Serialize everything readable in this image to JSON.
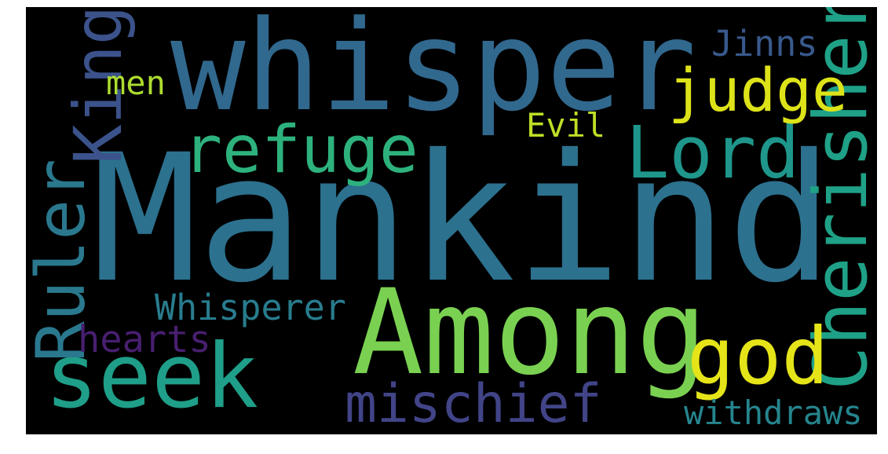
{
  "words": {
    "mankind": {
      "text": "Mankind",
      "color": "#2c718e"
    },
    "whisper": {
      "text": "whisper",
      "color": "#31688e"
    },
    "among": {
      "text": "Among",
      "color": "#7ad151"
    },
    "seek": {
      "text": "seek",
      "color": "#1f9e89"
    },
    "refuge": {
      "text": "refuge",
      "color": "#2db27d"
    },
    "lord": {
      "text": "Lord",
      "color": "#1f968b"
    },
    "king": {
      "text": "King",
      "color": "#3b528b"
    },
    "ruler": {
      "text": "Ruler",
      "color": "#2a788e"
    },
    "cherisher": {
      "text": "Cherisher",
      "color": "#1fa187"
    },
    "judge": {
      "text": "judge",
      "color": "#dde318"
    },
    "god": {
      "text": "god",
      "color": "#e5e419"
    },
    "mischief": {
      "text": "mischief",
      "color": "#414487"
    },
    "men": {
      "text": "men",
      "color": "#addc30"
    },
    "jinns": {
      "text": "Jinns",
      "color": "#38598c"
    },
    "evil": {
      "text": "Evil",
      "color": "#bddf26"
    },
    "whisperer": {
      "text": "Whisperer",
      "color": "#287c8e"
    },
    "hearts": {
      "text": "hearts",
      "color": "#481f70"
    },
    "withdraws": {
      "text": "withdraws",
      "color": "#25858e"
    }
  }
}
